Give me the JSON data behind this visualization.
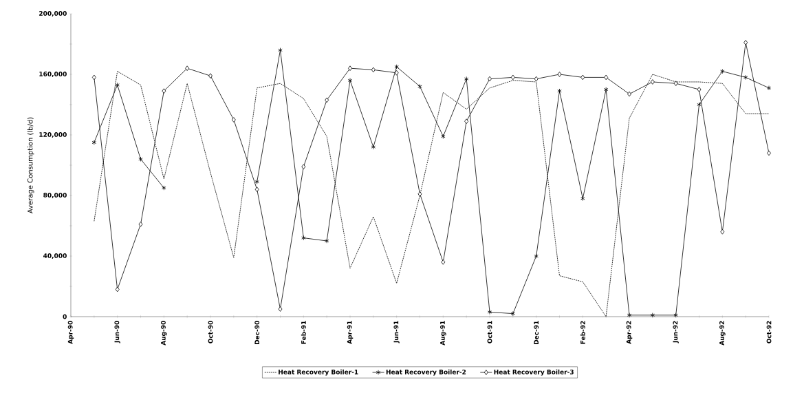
{
  "chart_data": {
    "type": "line",
    "ylabel": "Average Consumption (lb/d)",
    "x": [
      "1990-05",
      "1990-06",
      "1990-07",
      "1990-08",
      "1990-09",
      "1990-10",
      "1990-11",
      "1990-12",
      "1991-01",
      "1991-02",
      "1991-03",
      "1991-04",
      "1991-05",
      "1991-06",
      "1991-07",
      "1991-08",
      "1991-09",
      "1991-10",
      "1991-11",
      "1991-12",
      "1992-01",
      "1992-02",
      "1992-03",
      "1992-04",
      "1992-05",
      "1992-06",
      "1992-07",
      "1992-08",
      "1992-09",
      "1992-10"
    ],
    "series": [
      {
        "name": "Heat Recovery Boiler-1",
        "color": "#000000",
        "line_style": "dotted",
        "marker": "none",
        "values": [
          63000,
          162000,
          153000,
          91000,
          154000,
          95000,
          39000,
          151000,
          154000,
          144000,
          119000,
          32000,
          66000,
          22000,
          80000,
          148000,
          137000,
          151000,
          156000,
          155000,
          27000,
          23000,
          0,
          131000,
          160000,
          155000,
          155000,
          154000,
          134000,
          134000
        ]
      },
      {
        "name": "Heat Recovery Boiler-2",
        "color": "#000000",
        "line_style": "solid",
        "marker": "cross",
        "values": [
          115000,
          153000,
          104000,
          85000,
          null,
          null,
          null,
          89000,
          176000,
          52000,
          50000,
          156000,
          112000,
          165000,
          152000,
          119000,
          157000,
          3000,
          2000,
          40000,
          149000,
          78000,
          150000,
          1000,
          1000,
          1000,
          140000,
          162000,
          158000,
          151000
        ]
      },
      {
        "name": "Heat Recovery Boiler-3",
        "color": "#000000",
        "line_style": "solid",
        "marker": "diamond",
        "values": [
          158000,
          18000,
          61000,
          149000,
          164000,
          159000,
          130000,
          84000,
          5000,
          99000,
          143000,
          164000,
          163000,
          161000,
          81000,
          36000,
          129000,
          157000,
          158000,
          157000,
          160000,
          158000,
          158000,
          147000,
          155000,
          154000,
          150000,
          56000,
          181000,
          108000
        ]
      }
    ],
    "xlim": [
      "1990-04",
      "1992-10"
    ],
    "xticks": [
      {
        "value": "1990-04",
        "label": "Apr-90"
      },
      {
        "value": "1990-05",
        "label": null
      },
      {
        "value": "1990-06",
        "label": "Jun-90"
      },
      {
        "value": "1990-07",
        "label": null
      },
      {
        "value": "1990-08",
        "label": "Aug-90"
      },
      {
        "value": "1990-09",
        "label": null
      },
      {
        "value": "1990-10",
        "label": "Oct-90"
      },
      {
        "value": "1990-11",
        "label": null
      },
      {
        "value": "1990-12",
        "label": "Dec-90"
      },
      {
        "value": "1991-01",
        "label": null
      },
      {
        "value": "1991-02",
        "label": "Feb-91"
      },
      {
        "value": "1991-03",
        "label": null
      },
      {
        "value": "1991-04",
        "label": "Apr-91"
      },
      {
        "value": "1991-05",
        "label": null
      },
      {
        "value": "1991-06",
        "label": "Jun-91"
      },
      {
        "value": "1991-07",
        "label": null
      },
      {
        "value": "1991-08",
        "label": "Aug-91"
      },
      {
        "value": "1991-09",
        "label": null
      },
      {
        "value": "1991-10",
        "label": "Oct-91"
      },
      {
        "value": "1991-11",
        "label": null
      },
      {
        "value": "1991-12",
        "label": "Dec-91"
      },
      {
        "value": "1992-01",
        "label": null
      },
      {
        "value": "1992-02",
        "label": "Feb-92"
      },
      {
        "value": "1992-03",
        "label": null
      },
      {
        "value": "1992-04",
        "label": "Apr-92"
      },
      {
        "value": "1992-05",
        "label": null
      },
      {
        "value": "1992-06",
        "label": "Jun-92"
      },
      {
        "value": "1992-07",
        "label": null
      },
      {
        "value": "1992-08",
        "label": "Aug-92"
      },
      {
        "value": "1992-09",
        "label": null
      },
      {
        "value": "1992-10",
        "label": "Oct-92"
      }
    ],
    "ylim": [
      0,
      200000
    ],
    "yticks": [
      0,
      {
        "value": 20000,
        "label": null
      },
      {
        "value": 40000,
        "label": "40,000"
      },
      {
        "value": 60000,
        "label": null
      },
      {
        "value": 80000,
        "label": "80,000"
      },
      {
        "value": 100000,
        "label": null
      },
      {
        "value": 120000,
        "label": "120,000"
      },
      {
        "value": 140000,
        "label": null
      },
      {
        "value": 160000,
        "label": "160,000"
      },
      {
        "value": 180000,
        "label": null
      },
      {
        "value": 200000,
        "label": "200,000"
      }
    ],
    "grid": false,
    "legend": "bottom"
  }
}
